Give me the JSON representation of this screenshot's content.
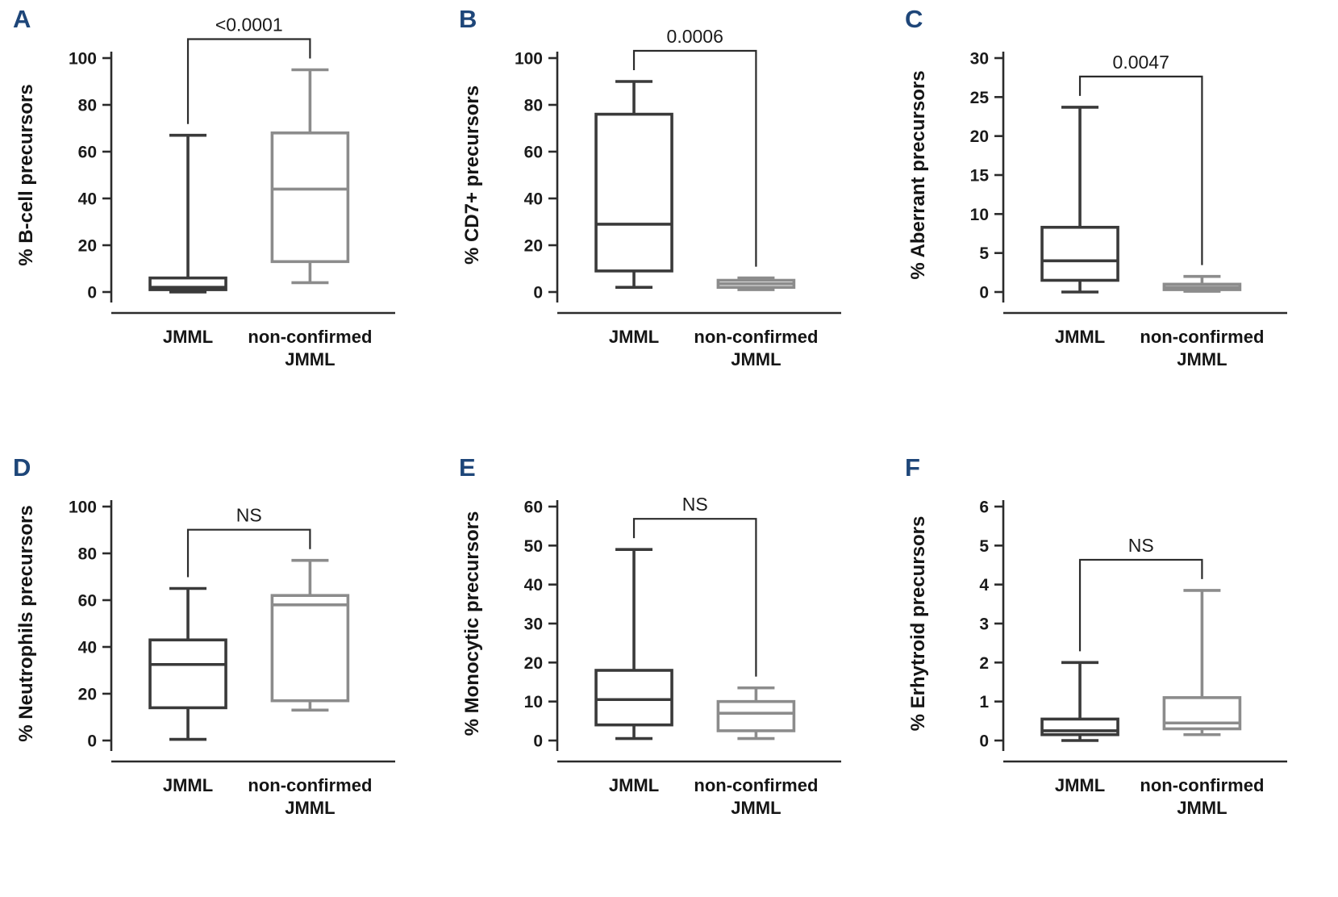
{
  "style": {
    "background": "#ffffff",
    "panel_letter_color": "#1e4679",
    "axis_color": "#2b2b2b",
    "jmml_box_color": "#3a3a3a",
    "non_confirmed_box_color": "#8c8c8c"
  },
  "chart_data": [
    {
      "type": "box",
      "panel_letter": "A",
      "ylabel": "% B-cell precursors",
      "ylim": [
        0,
        100
      ],
      "yticks": [
        0,
        20,
        40,
        60,
        80,
        100
      ],
      "significance_label": "<0.0001",
      "categories": [
        "JMML",
        "non-confirmed JMML"
      ],
      "category_label_lines": [
        [
          "JMML"
        ],
        [
          "non-confirmed",
          "JMML"
        ]
      ],
      "series": [
        {
          "name": "JMML",
          "color": "#3a3a3a",
          "whisker_min": 0,
          "q1": 1,
          "median": 2,
          "q3": 6,
          "whisker_max": 67
        },
        {
          "name": "non-confirmed JMML",
          "color": "#8c8c8c",
          "whisker_min": 4,
          "q1": 13,
          "median": 44,
          "q3": 68,
          "whisker_max": 95
        }
      ]
    },
    {
      "type": "box",
      "panel_letter": "B",
      "ylabel": "% CD7+ precursors",
      "ylim": [
        0,
        100
      ],
      "yticks": [
        0,
        20,
        40,
        60,
        80,
        100
      ],
      "significance_label": "0.0006",
      "categories": [
        "JMML",
        "non-confirmed JMML"
      ],
      "category_label_lines": [
        [
          "JMML"
        ],
        [
          "non-confirmed",
          "JMML"
        ]
      ],
      "series": [
        {
          "name": "JMML",
          "color": "#3a3a3a",
          "whisker_min": 2,
          "q1": 9,
          "median": 29,
          "q3": 76,
          "whisker_max": 90
        },
        {
          "name": "non-confirmed JMML",
          "color": "#8c8c8c",
          "whisker_min": 1,
          "q1": 2,
          "median": 3.5,
          "q3": 5,
          "whisker_max": 6
        }
      ]
    },
    {
      "type": "box",
      "panel_letter": "C",
      "ylabel": "% Aberrant precursors",
      "ylim": [
        0,
        30
      ],
      "yticks": [
        0,
        5,
        10,
        15,
        20,
        25,
        30
      ],
      "significance_label": "0.0047",
      "categories": [
        "JMML",
        "non-confirmed JMML"
      ],
      "category_label_lines": [
        [
          "JMML"
        ],
        [
          "non-confirmed",
          "JMML"
        ]
      ],
      "series": [
        {
          "name": "JMML",
          "color": "#3a3a3a",
          "whisker_min": 0,
          "q1": 1.5,
          "median": 4,
          "q3": 8.3,
          "whisker_max": 23.7
        },
        {
          "name": "non-confirmed JMML",
          "color": "#8c8c8c",
          "whisker_min": 0.1,
          "q1": 0.3,
          "median": 0.6,
          "q3": 1,
          "whisker_max": 2
        }
      ]
    },
    {
      "type": "box",
      "panel_letter": "D",
      "ylabel": "% Neutrophils precursors",
      "ylim": [
        0,
        100
      ],
      "yticks": [
        0,
        20,
        40,
        60,
        80,
        100
      ],
      "significance_label": "NS",
      "categories": [
        "JMML",
        "non-confirmed JMML"
      ],
      "category_label_lines": [
        [
          "JMML"
        ],
        [
          "non-confirmed",
          "JMML"
        ]
      ],
      "series": [
        {
          "name": "JMML",
          "color": "#3a3a3a",
          "whisker_min": 0.5,
          "q1": 14,
          "median": 32.5,
          "q3": 43,
          "whisker_max": 65
        },
        {
          "name": "non-confirmed JMML",
          "color": "#8c8c8c",
          "whisker_min": 13,
          "q1": 17,
          "median": 58,
          "q3": 62,
          "whisker_max": 77
        }
      ]
    },
    {
      "type": "box",
      "panel_letter": "E",
      "ylabel": "% Monocytic precursors",
      "ylim": [
        0,
        60
      ],
      "yticks": [
        0,
        10,
        20,
        30,
        40,
        50,
        60
      ],
      "significance_label": "NS",
      "categories": [
        "JMML",
        "non-confirmed JMML"
      ],
      "category_label_lines": [
        [
          "JMML"
        ],
        [
          "non-confirmed",
          "JMML"
        ]
      ],
      "series": [
        {
          "name": "JMML",
          "color": "#3a3a3a",
          "whisker_min": 0.5,
          "q1": 4,
          "median": 10.5,
          "q3": 18,
          "whisker_max": 49
        },
        {
          "name": "non-confirmed JMML",
          "color": "#8c8c8c",
          "whisker_min": 0.5,
          "q1": 2.5,
          "median": 7,
          "q3": 10,
          "whisker_max": 13.5
        }
      ]
    },
    {
      "type": "box",
      "panel_letter": "F",
      "ylabel": "% Erhytroid precursors",
      "ylim": [
        0,
        6
      ],
      "yticks": [
        0,
        1,
        2,
        3,
        4,
        5,
        6
      ],
      "significance_label": "NS",
      "categories": [
        "JMML",
        "non-confirmed JMML"
      ],
      "category_label_lines": [
        [
          "JMML"
        ],
        [
          "non-confirmed",
          "JMML"
        ]
      ],
      "series": [
        {
          "name": "JMML",
          "color": "#3a3a3a",
          "whisker_min": 0,
          "q1": 0.15,
          "median": 0.25,
          "q3": 0.55,
          "whisker_max": 2
        },
        {
          "name": "non-confirmed JMML",
          "color": "#8c8c8c",
          "whisker_min": 0.15,
          "q1": 0.3,
          "median": 0.45,
          "q3": 1.1,
          "whisker_max": 3.85
        }
      ]
    }
  ]
}
